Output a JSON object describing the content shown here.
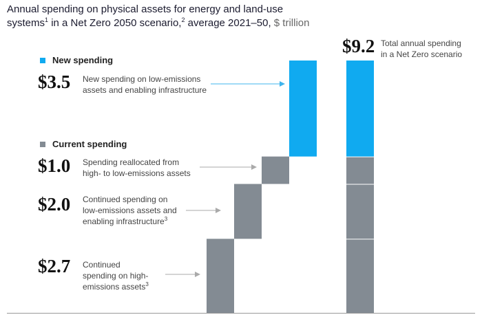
{
  "title": {
    "line1": "Annual spending on physical assets for energy and land-use",
    "line2_a": "systems",
    "sup1": "1",
    "line2_b": " in a Net Zero 2050 scenario,",
    "sup2": "2",
    "line2_c": " average 2021–50, ",
    "unit": "$ trillion"
  },
  "legend": {
    "new": "New spending",
    "current": "Current spending"
  },
  "colors": {
    "new": "#10aaf0",
    "current": "#838b93",
    "arrow_new": "#3fb4ec",
    "arrow_current": "#aaaaaa",
    "axis": "#999999"
  },
  "total": {
    "value_label": "$9.2",
    "text_line1": "Total annual spending",
    "text_line2": "in a Net Zero scenario"
  },
  "rows": [
    {
      "value_label": "$3.5",
      "line1": "New spending on low-emissions",
      "line2": "assets and enabling infrastructure",
      "line3": "",
      "sup": ""
    },
    {
      "value_label": "$1.0",
      "line1": "Spending reallocated from",
      "line2": "high- to low-emissions assets",
      "line3": "",
      "sup": ""
    },
    {
      "value_label": "$2.0",
      "line1": "Continued spending on",
      "line2": "low-emissions assets and",
      "line3": "enabling infrastructure",
      "sup": "3"
    },
    {
      "value_label": "$2.7",
      "line1": "Continued",
      "line2": "spending on high-",
      "line3": "emissions assets",
      "sup": "3"
    }
  ],
  "chart_data": {
    "type": "bar",
    "subtype": "waterfall",
    "title": "Annual spending on physical assets for energy and land-use systems in a Net Zero 2050 scenario, average 2021–50",
    "unit": "$ trillion",
    "steps": [
      {
        "name": "Continued spending on high-emissions assets",
        "group": "Current spending",
        "value": 2.7,
        "base": 0
      },
      {
        "name": "Continued spending on low-emissions assets and enabling infrastructure",
        "group": "Current spending",
        "value": 2.0,
        "base": 2.7
      },
      {
        "name": "Spending reallocated from high- to low-emissions assets",
        "group": "Current spending",
        "value": 1.0,
        "base": 4.7
      },
      {
        "name": "New spending on low-emissions assets and enabling infrastructure",
        "group": "New spending",
        "value": 3.5,
        "base": 5.7
      }
    ],
    "total": {
      "name": "Total annual spending in a Net Zero scenario",
      "value": 9.2,
      "segments": [
        2.7,
        2.0,
        1.0,
        3.5
      ]
    },
    "ylim": [
      0,
      9.2
    ],
    "grid": false,
    "legend_position": "left"
  }
}
